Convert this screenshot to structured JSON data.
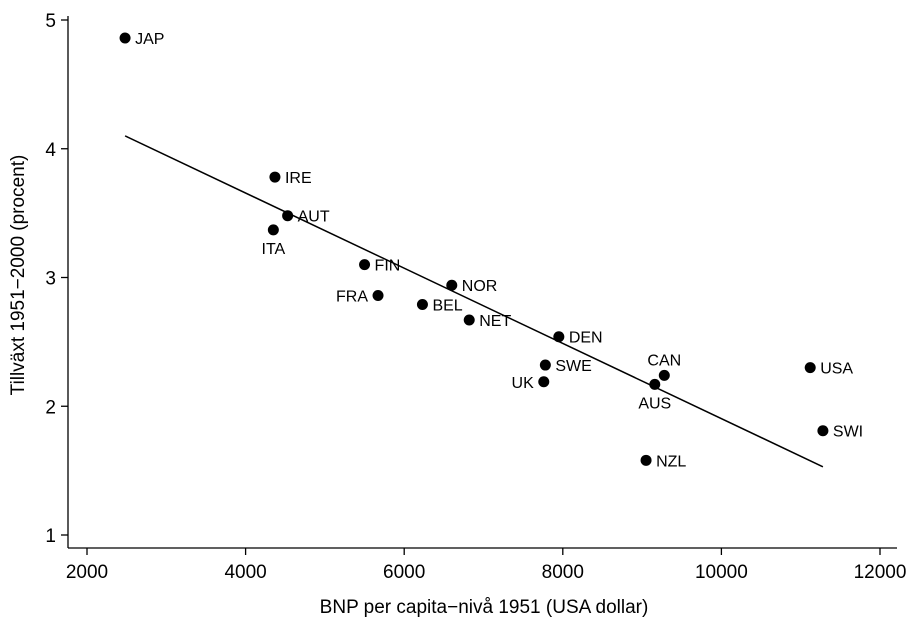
{
  "chart_data": {
    "type": "scatter",
    "title": "",
    "xlabel": "BNP per capita−nivå 1951 (USA dollar)",
    "ylabel": "Tillväxt 1951−2000 (procent)",
    "xlim": [
      2000,
      12000
    ],
    "ylim": [
      1,
      5
    ],
    "xticks": [
      2000,
      4000,
      6000,
      8000,
      10000,
      12000
    ],
    "yticks": [
      1,
      2,
      3,
      4,
      5
    ],
    "grid": false,
    "marker_color": "#000000",
    "points": [
      {
        "label": "JAP",
        "x": 2480,
        "y": 4.86,
        "label_pos": "right"
      },
      {
        "label": "IRE",
        "x": 4370,
        "y": 3.78,
        "label_pos": "right"
      },
      {
        "label": "AUT",
        "x": 4530,
        "y": 3.48,
        "label_pos": "right"
      },
      {
        "label": "ITA",
        "x": 4350,
        "y": 3.37,
        "label_pos": "below"
      },
      {
        "label": "FIN",
        "x": 5500,
        "y": 3.1,
        "label_pos": "right"
      },
      {
        "label": "FRA",
        "x": 5670,
        "y": 2.86,
        "label_pos": "left"
      },
      {
        "label": "NOR",
        "x": 6600,
        "y": 2.94,
        "label_pos": "right"
      },
      {
        "label": "BEL",
        "x": 6230,
        "y": 2.79,
        "label_pos": "right"
      },
      {
        "label": "NET",
        "x": 6820,
        "y": 2.67,
        "label_pos": "right"
      },
      {
        "label": "DEN",
        "x": 7950,
        "y": 2.54,
        "label_pos": "right"
      },
      {
        "label": "SWE",
        "x": 7780,
        "y": 2.32,
        "label_pos": "right"
      },
      {
        "label": "UK",
        "x": 7760,
        "y": 2.19,
        "label_pos": "left"
      },
      {
        "label": "CAN",
        "x": 9280,
        "y": 2.24,
        "label_pos": "above"
      },
      {
        "label": "AUS",
        "x": 9160,
        "y": 2.17,
        "label_pos": "below"
      },
      {
        "label": "USA",
        "x": 11120,
        "y": 2.3,
        "label_pos": "right"
      },
      {
        "label": "SWI",
        "x": 11280,
        "y": 1.81,
        "label_pos": "right"
      },
      {
        "label": "NZL",
        "x": 9050,
        "y": 1.58,
        "label_pos": "right"
      }
    ],
    "fit_line": {
      "x": [
        2480,
        11280
      ],
      "y": [
        4.1,
        1.53
      ]
    }
  }
}
